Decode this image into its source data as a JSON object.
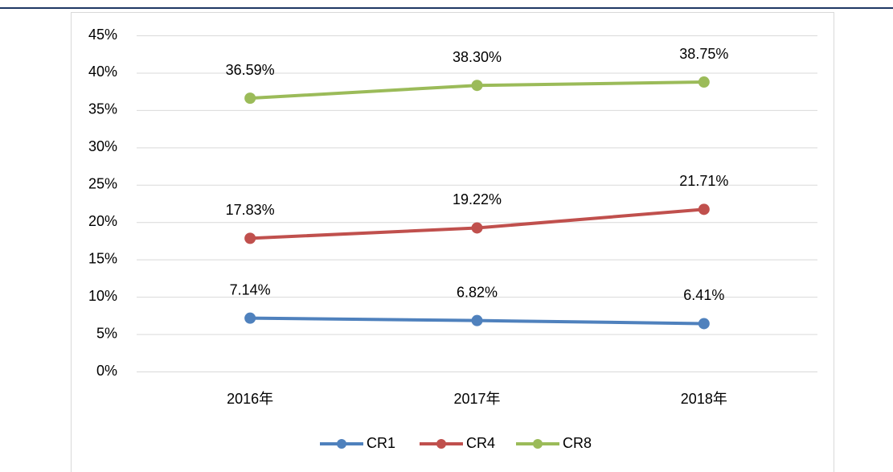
{
  "chart_data": {
    "type": "line",
    "categories": [
      "2016年",
      "2017年",
      "2018年"
    ],
    "series": [
      {
        "name": "CR1",
        "color": "#4f81bd",
        "values": [
          7.14,
          6.82,
          6.41
        ],
        "value_labels": [
          "7.14%",
          "6.82%",
          "6.41%"
        ]
      },
      {
        "name": "CR4",
        "color": "#c0504d",
        "values": [
          17.83,
          19.22,
          21.71
        ],
        "value_labels": [
          "17.83%",
          "19.22%",
          "21.71%"
        ]
      },
      {
        "name": "CR8",
        "color": "#9bbb59",
        "values": [
          36.59,
          38.3,
          38.75
        ],
        "value_labels": [
          "36.59%",
          "38.30%",
          "38.75%"
        ]
      }
    ],
    "ylim": [
      0,
      45
    ],
    "yticks": [
      {
        "value": 0,
        "label": "0%"
      },
      {
        "value": 5,
        "label": "5%"
      },
      {
        "value": 10,
        "label": "10%"
      },
      {
        "value": 15,
        "label": "15%"
      },
      {
        "value": 20,
        "label": "20%"
      },
      {
        "value": 25,
        "label": "25%"
      },
      {
        "value": 30,
        "label": "30%"
      },
      {
        "value": 35,
        "label": "35%"
      },
      {
        "value": 40,
        "label": "40%"
      },
      {
        "value": 45,
        "label": "45%"
      }
    ],
    "grid": true,
    "legend": "bottom"
  }
}
